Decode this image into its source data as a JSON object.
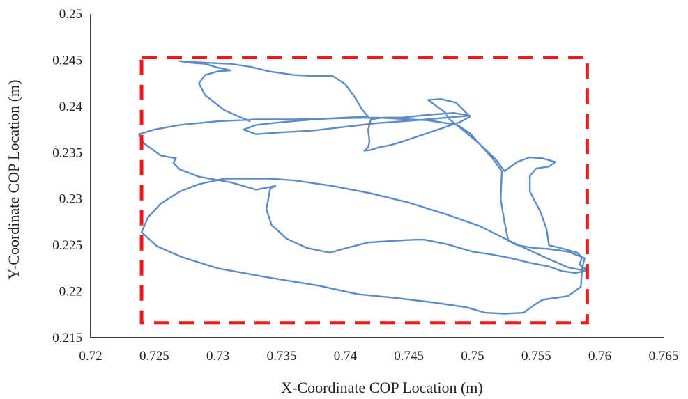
{
  "chart_data": {
    "type": "line",
    "title": "",
    "xlabel": "X-Coordinate COP Location (m)",
    "ylabel": "Y-Coordinate COP Location (m)",
    "xlim": [
      0.72,
      0.765
    ],
    "ylim": [
      0.215,
      0.25
    ],
    "x_ticks": [
      "0.72",
      "0.725",
      "0.73",
      "0.735",
      "0.74",
      "0.745",
      "0.75",
      "0.755",
      "0.76",
      "0.765"
    ],
    "y_ticks": [
      "0.215",
      "0.22",
      "0.225",
      "0.23",
      "0.235",
      "0.24",
      "0.245",
      "0.25"
    ],
    "grid": false,
    "legend": "none",
    "series": [
      {
        "color": "#5b8cc8",
        "points": [
          [
            0.7325,
            0.2384
          ],
          [
            0.7305,
            0.2396
          ],
          [
            0.729,
            0.2412
          ],
          [
            0.7285,
            0.2425
          ],
          [
            0.729,
            0.2434
          ],
          [
            0.73,
            0.2438
          ],
          [
            0.731,
            0.2439
          ],
          [
            0.73,
            0.2442
          ],
          [
            0.729,
            0.2446
          ],
          [
            0.728,
            0.2447
          ],
          [
            0.727,
            0.2449
          ],
          [
            0.728,
            0.2448
          ],
          [
            0.7295,
            0.2447
          ],
          [
            0.731,
            0.2446
          ],
          [
            0.7325,
            0.2443
          ],
          [
            0.734,
            0.2438
          ],
          [
            0.736,
            0.2434
          ],
          [
            0.7375,
            0.2433
          ],
          [
            0.739,
            0.2433
          ],
          [
            0.74,
            0.2424
          ],
          [
            0.7408,
            0.2409
          ],
          [
            0.7413,
            0.2397
          ],
          [
            0.7418,
            0.2389
          ],
          [
            0.74,
            0.2388
          ],
          [
            0.7375,
            0.2386
          ],
          [
            0.735,
            0.2383
          ],
          [
            0.733,
            0.238
          ],
          [
            0.732,
            0.2375
          ],
          [
            0.733,
            0.237
          ],
          [
            0.735,
            0.2372
          ],
          [
            0.7375,
            0.2374
          ],
          [
            0.74,
            0.2378
          ],
          [
            0.7425,
            0.2382
          ],
          [
            0.7455,
            0.2385
          ],
          [
            0.748,
            0.2388
          ],
          [
            0.7498,
            0.239
          ],
          [
            0.7485,
            0.2393
          ],
          [
            0.7465,
            0.2391
          ],
          [
            0.7445,
            0.2388
          ],
          [
            0.743,
            0.2388
          ],
          [
            0.742,
            0.2386
          ],
          [
            0.7418,
            0.2375
          ],
          [
            0.7419,
            0.2362
          ],
          [
            0.7418,
            0.2356
          ],
          [
            0.7415,
            0.2352
          ],
          [
            0.742,
            0.2353
          ],
          [
            0.7427,
            0.2356
          ],
          [
            0.7435,
            0.2358
          ],
          [
            0.7445,
            0.2362
          ],
          [
            0.746,
            0.2369
          ],
          [
            0.7475,
            0.2376
          ],
          [
            0.749,
            0.2383
          ],
          [
            0.7498,
            0.2389
          ],
          [
            0.7487,
            0.2404
          ],
          [
            0.7475,
            0.2408
          ],
          [
            0.7465,
            0.2407
          ],
          [
            0.747,
            0.2402
          ],
          [
            0.7478,
            0.2394
          ],
          [
            0.7482,
            0.2386
          ],
          [
            0.7492,
            0.2375
          ],
          [
            0.7505,
            0.236
          ],
          [
            0.7518,
            0.2343
          ],
          [
            0.7525,
            0.233
          ],
          [
            0.7535,
            0.234
          ],
          [
            0.7545,
            0.2345
          ],
          [
            0.7555,
            0.2344
          ],
          [
            0.7565,
            0.234
          ],
          [
            0.756,
            0.2335
          ],
          [
            0.755,
            0.2333
          ],
          [
            0.7545,
            0.2325
          ],
          [
            0.7545,
            0.2308
          ],
          [
            0.7553,
            0.2287
          ],
          [
            0.7558,
            0.2268
          ],
          [
            0.756,
            0.225
          ],
          [
            0.7572,
            0.2246
          ],
          [
            0.7582,
            0.2242
          ],
          [
            0.7586,
            0.2237
          ],
          [
            0.7584,
            0.2229
          ],
          [
            0.759,
            0.2223
          ],
          [
            0.7581,
            0.222
          ],
          [
            0.757,
            0.2222
          ],
          [
            0.756,
            0.2227
          ],
          [
            0.7545,
            0.2231
          ],
          [
            0.753,
            0.2236
          ],
          [
            0.7515,
            0.224
          ],
          [
            0.75,
            0.2243
          ],
          [
            0.748,
            0.2251
          ],
          [
            0.7462,
            0.2256
          ],
          [
            0.7455,
            0.2256
          ],
          [
            0.744,
            0.2255
          ],
          [
            0.7418,
            0.2253
          ],
          [
            0.7398,
            0.2246
          ],
          [
            0.7388,
            0.2242
          ],
          [
            0.737,
            0.2247
          ],
          [
            0.7354,
            0.2257
          ],
          [
            0.7342,
            0.2272
          ],
          [
            0.7338,
            0.2289
          ],
          [
            0.7341,
            0.2311
          ],
          [
            0.7345,
            0.2314
          ],
          [
            0.733,
            0.231
          ],
          [
            0.731,
            0.2318
          ],
          [
            0.7285,
            0.2324
          ],
          [
            0.727,
            0.2332
          ],
          [
            0.7265,
            0.2339
          ],
          [
            0.7267,
            0.2344
          ],
          [
            0.7255,
            0.2347
          ],
          [
            0.725,
            0.2352
          ],
          [
            0.7242,
            0.236
          ],
          [
            0.7238,
            0.237
          ],
          [
            0.725,
            0.2375
          ],
          [
            0.727,
            0.238
          ],
          [
            0.73,
            0.2384
          ],
          [
            0.733,
            0.2386
          ],
          [
            0.736,
            0.2386
          ],
          [
            0.739,
            0.2387
          ],
          [
            0.7425,
            0.2388
          ],
          [
            0.7465,
            0.2385
          ],
          [
            0.7488,
            0.238
          ],
          [
            0.7498,
            0.2371
          ],
          [
            0.7505,
            0.236
          ],
          [
            0.7515,
            0.2345
          ],
          [
            0.7523,
            0.233
          ],
          [
            0.7522,
            0.23
          ],
          [
            0.7525,
            0.2275
          ],
          [
            0.7528,
            0.2255
          ],
          [
            0.7535,
            0.225
          ],
          [
            0.7548,
            0.2247
          ],
          [
            0.756,
            0.2246
          ],
          [
            0.7575,
            0.2243
          ],
          [
            0.7588,
            0.2236
          ],
          [
            0.7586,
            0.2225
          ],
          [
            0.7585,
            0.2205
          ],
          [
            0.7575,
            0.2195
          ],
          [
            0.7555,
            0.2191
          ],
          [
            0.7548,
            0.2185
          ],
          [
            0.754,
            0.2177
          ],
          [
            0.7525,
            0.2176
          ],
          [
            0.751,
            0.2177
          ],
          [
            0.7495,
            0.2183
          ],
          [
            0.747,
            0.2188
          ],
          [
            0.744,
            0.2193
          ],
          [
            0.741,
            0.2197
          ],
          [
            0.738,
            0.2206
          ],
          [
            0.734,
            0.2215
          ],
          [
            0.73,
            0.2225
          ],
          [
            0.7272,
            0.2237
          ],
          [
            0.7252,
            0.2249
          ],
          [
            0.724,
            0.2264
          ],
          [
            0.7245,
            0.228
          ],
          [
            0.7255,
            0.2295
          ],
          [
            0.727,
            0.2308
          ],
          [
            0.7285,
            0.2316
          ],
          [
            0.7305,
            0.2322
          ],
          [
            0.734,
            0.2322
          ],
          [
            0.736,
            0.232
          ],
          [
            0.739,
            0.2314
          ],
          [
            0.742,
            0.2306
          ],
          [
            0.745,
            0.2296
          ],
          [
            0.748,
            0.2283
          ],
          [
            0.7505,
            0.2271
          ],
          [
            0.753,
            0.2254
          ],
          [
            0.7555,
            0.2238
          ],
          [
            0.7575,
            0.2226
          ],
          [
            0.759,
            0.2222
          ]
        ]
      }
    ],
    "annotations": [
      {
        "type": "dashed-rectangle",
        "color": "#ee1c1c",
        "x_range": [
          0.724,
          0.759
        ],
        "y_range": [
          0.2166,
          0.2453
        ]
      }
    ]
  }
}
